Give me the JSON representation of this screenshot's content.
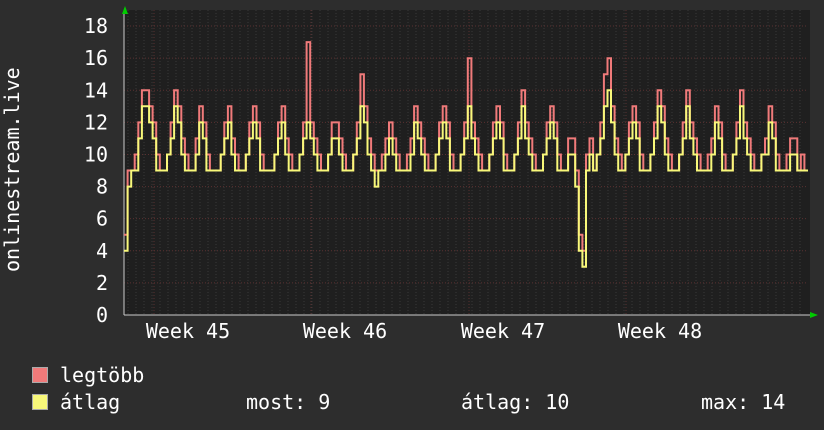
{
  "chart_data": {
    "type": "line",
    "ylabel": "onlinestream.live",
    "ylim": [
      0,
      19
    ],
    "yticks": [
      0,
      2,
      4,
      6,
      8,
      10,
      12,
      14,
      16,
      18
    ],
    "x_tick_labels": [
      "Week 45",
      "Week 46",
      "Week 47",
      "Week 48"
    ],
    "grid": true,
    "series": [
      {
        "name": "legtöbb",
        "color": "#f07a7a",
        "values": [
          5,
          9,
          9,
          10,
          12,
          14,
          14,
          13,
          12,
          10,
          9,
          9,
          10,
          12,
          14,
          13,
          11,
          10,
          9,
          9,
          11,
          13,
          12,
          10,
          9,
          9,
          9,
          10,
          12,
          13,
          11,
          10,
          9,
          9,
          10,
          12,
          13,
          12,
          10,
          9,
          9,
          9,
          10,
          12,
          13,
          11,
          10,
          9,
          9,
          10,
          12,
          17,
          12,
          11,
          10,
          9,
          9,
          10,
          12,
          12,
          11,
          10,
          9,
          9,
          10,
          12,
          15,
          13,
          11,
          10,
          9,
          9,
          10,
          11,
          12,
          11,
          10,
          9,
          9,
          10,
          11,
          13,
          12,
          11,
          10,
          9,
          9,
          10,
          12,
          13,
          12,
          10,
          9,
          9,
          10,
          12,
          16,
          12,
          11,
          10,
          9,
          9,
          10,
          12,
          13,
          12,
          10,
          9,
          9,
          10,
          12,
          14,
          12,
          11,
          10,
          9,
          9,
          10,
          12,
          13,
          12,
          10,
          9,
          9,
          11,
          11,
          9,
          5,
          4,
          10,
          11,
          9,
          10,
          12,
          15,
          16,
          13,
          11,
          10,
          9,
          10,
          12,
          13,
          12,
          10,
          9,
          9,
          10,
          12,
          14,
          13,
          11,
          10,
          9,
          9,
          10,
          12,
          14,
          12,
          11,
          10,
          9,
          9,
          10,
          11,
          13,
          12,
          10,
          9,
          9,
          10,
          12,
          14,
          12,
          11,
          10,
          9,
          9,
          10,
          11,
          13,
          12,
          10,
          9,
          9,
          10,
          11,
          11,
          9,
          10,
          9
        ]
      },
      {
        "name": "átlag",
        "color": "#f8f87a",
        "values": [
          4,
          8,
          9,
          9,
          11,
          13,
          13,
          12,
          11,
          9,
          9,
          9,
          10,
          11,
          13,
          12,
          10,
          9,
          9,
          9,
          10,
          12,
          11,
          9,
          9,
          9,
          9,
          10,
          11,
          12,
          10,
          9,
          9,
          9,
          10,
          11,
          12,
          11,
          9,
          9,
          9,
          9,
          10,
          11,
          12,
          10,
          9,
          9,
          9,
          10,
          11,
          12,
          11,
          10,
          9,
          9,
          9,
          10,
          11,
          11,
          10,
          9,
          9,
          9,
          10,
          11,
          13,
          12,
          10,
          9,
          8,
          9,
          9,
          10,
          11,
          10,
          9,
          9,
          9,
          9,
          10,
          12,
          11,
          10,
          9,
          9,
          9,
          10,
          11,
          12,
          11,
          9,
          9,
          9,
          10,
          11,
          13,
          11,
          10,
          9,
          9,
          9,
          10,
          11,
          12,
          11,
          9,
          9,
          9,
          10,
          11,
          13,
          11,
          10,
          9,
          9,
          9,
          10,
          11,
          12,
          11,
          9,
          9,
          9,
          10,
          10,
          8,
          4,
          3,
          9,
          10,
          9,
          10,
          11,
          13,
          14,
          12,
          10,
          9,
          9,
          10,
          11,
          12,
          11,
          9,
          9,
          9,
          10,
          11,
          13,
          12,
          10,
          9,
          9,
          9,
          10,
          11,
          13,
          11,
          10,
          9,
          9,
          9,
          9,
          10,
          12,
          11,
          9,
          9,
          9,
          10,
          11,
          13,
          11,
          10,
          9,
          9,
          9,
          10,
          10,
          12,
          11,
          9,
          9,
          9,
          9,
          10,
          10,
          9,
          9,
          9
        ]
      }
    ]
  },
  "legend": {
    "max_label": "legtöbb",
    "avg_label": "átlag"
  },
  "stats": {
    "now": "most: 9",
    "avg": "átlag: 10",
    "max": "max: 14"
  }
}
